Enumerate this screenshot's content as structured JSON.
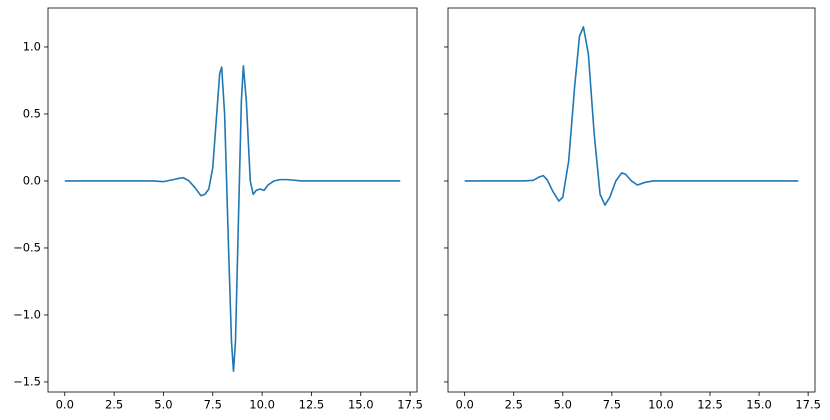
{
  "chart_data": [
    {
      "type": "line",
      "color": "#1f77b4",
      "x": [
        0,
        1,
        2,
        3,
        4,
        4.5,
        5,
        5.5,
        5.8,
        6.0,
        6.3,
        6.6,
        6.9,
        7.1,
        7.3,
        7.5,
        7.7,
        7.85,
        7.95,
        8.1,
        8.3,
        8.45,
        8.55,
        8.65,
        8.8,
        8.95,
        9.05,
        9.2,
        9.4,
        9.55,
        9.7,
        9.9,
        10.1,
        10.3,
        10.6,
        10.9,
        11.3,
        12,
        13,
        14,
        15,
        16,
        17
      ],
      "values": [
        0,
        0,
        0,
        0,
        0,
        0,
        -0.005,
        0.01,
        0.02,
        0.025,
        0.0,
        -0.05,
        -0.11,
        -0.1,
        -0.06,
        0.1,
        0.5,
        0.8,
        0.85,
        0.5,
        -0.5,
        -1.2,
        -1.42,
        -1.2,
        -0.3,
        0.6,
        0.86,
        0.6,
        0.0,
        -0.1,
        -0.07,
        -0.06,
        -0.07,
        -0.03,
        0.0,
        0.01,
        0.01,
        0,
        0,
        0,
        0,
        0,
        0
      ],
      "xlim": [
        -0.85,
        17.85
      ],
      "ylim": [
        -1.575,
        1.291
      ],
      "xticks": [
        {
          "value": 0,
          "label": "0.0"
        },
        2.5,
        {
          "value": 5,
          "label": "5.0"
        },
        7.5,
        {
          "value": 10,
          "label": "10.0"
        },
        12.5,
        {
          "value": 15,
          "label": "15.0"
        },
        17.5
      ],
      "yticks": [
        {
          "value": -1.5,
          "label": "−1.5"
        },
        {
          "value": -1,
          "label": "−1.0"
        },
        {
          "value": -0.5,
          "label": "−0.5"
        },
        {
          "value": 0,
          "label": "0.0"
        },
        0.5,
        {
          "value": 1,
          "label": "1.0"
        }
      ]
    },
    {
      "type": "line",
      "color": "#1f77b4",
      "sharey": true,
      "x": [
        0,
        1,
        2,
        3,
        3.5,
        3.8,
        4.0,
        4.2,
        4.5,
        4.8,
        5.0,
        5.3,
        5.6,
        5.85,
        6.05,
        6.3,
        6.6,
        6.9,
        7.15,
        7.4,
        7.7,
        8.0,
        8.2,
        8.5,
        8.8,
        9.2,
        9.6,
        10,
        11,
        12,
        13,
        14,
        15,
        16,
        17
      ],
      "values": [
        0,
        0,
        0,
        0,
        0.005,
        0.03,
        0.04,
        0.01,
        -0.08,
        -0.15,
        -0.12,
        0.15,
        0.7,
        1.08,
        1.15,
        0.95,
        0.35,
        -0.1,
        -0.18,
        -0.12,
        0.0,
        0.06,
        0.05,
        0.0,
        -0.03,
        -0.01,
        0,
        0,
        0,
        0,
        0,
        0,
        0,
        0,
        0
      ],
      "xlim": [
        -0.85,
        17.85
      ],
      "ylim": [
        -1.575,
        1.291
      ],
      "xticks": [
        {
          "value": 0,
          "label": "0.0"
        },
        2.5,
        {
          "value": 5,
          "label": "5.0"
        },
        7.5,
        {
          "value": 10,
          "label": "10.0"
        },
        12.5,
        {
          "value": 15,
          "label": "15.0"
        },
        17.5
      ]
    }
  ]
}
